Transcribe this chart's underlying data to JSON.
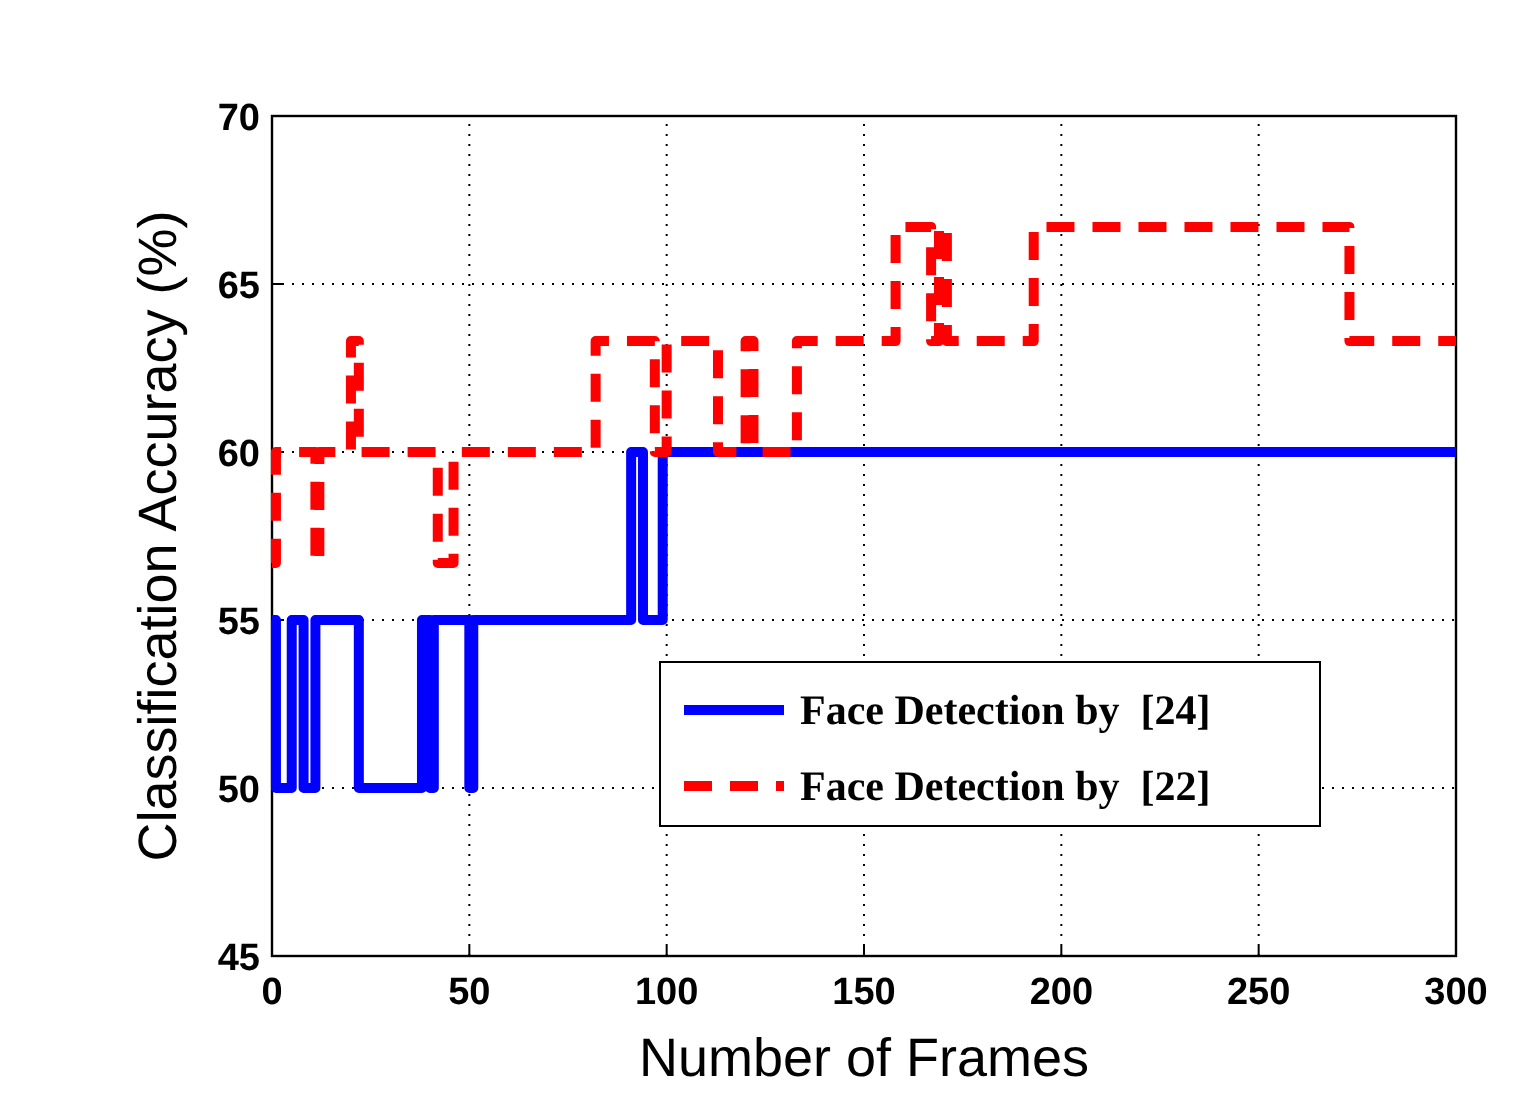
{
  "chart_data": {
    "type": "step",
    "xlabel": "Number of Frames",
    "ylabel": "Classification Accuracy (%)",
    "xlim": [
      0,
      300
    ],
    "xticks": [
      0,
      50,
      100,
      150,
      200,
      250,
      300
    ],
    "ylim": [
      45,
      70
    ],
    "yticks": [
      45,
      50,
      55,
      60,
      65,
      70
    ],
    "grid": true,
    "legend": "bottom right",
    "marker": "none",
    "series": [
      {
        "name": "Face Detection by  [24]",
        "color": "#0000ff",
        "line_style": "solid",
        "x": [
          0,
          1,
          5,
          8,
          11,
          22,
          38,
          40,
          41,
          50,
          51,
          91,
          94,
          99,
          300
        ],
        "values": [
          55,
          50,
          55,
          50,
          55,
          50,
          55,
          50,
          55,
          50,
          55,
          60,
          55,
          60,
          60
        ]
      },
      {
        "name": "Face Detection by  [22]",
        "color": "#ff0000",
        "line_style": "dashed",
        "x": [
          0,
          1,
          11,
          12,
          20,
          22,
          42,
          46,
          82,
          97,
          100,
          113,
          120,
          122,
          133,
          158,
          167,
          169,
          171,
          193,
          273,
          300
        ],
        "values": [
          56.7,
          60,
          56.7,
          60,
          63.3,
          60,
          56.7,
          60,
          63.3,
          60,
          63.3,
          60,
          63.3,
          60,
          63.3,
          66.7,
          63.3,
          66.7,
          63.3,
          66.7,
          63.3,
          63.3
        ]
      }
    ]
  }
}
